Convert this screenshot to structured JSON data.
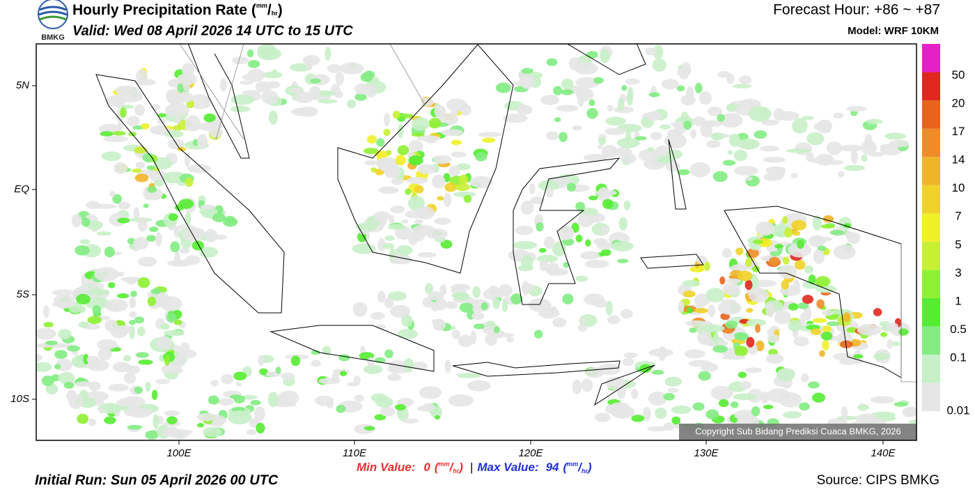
{
  "header": {
    "logo": "BMKG",
    "title": "Hourly Precipitation Rate",
    "valid": "Valid: Wed 08 April 2026 14 UTC to 15 UTC",
    "forecast_hour": "Forecast Hour: +86 ~ +87",
    "model": "Model: WRF 10KM"
  },
  "unit": {
    "open": "(",
    "num": "mm",
    "sep": "/",
    "den": "hr",
    "close": ")"
  },
  "map": {
    "lat_ticks": [
      "5N",
      "EQ",
      "5S",
      "10S"
    ],
    "lon_ticks": [
      "100E",
      "110E",
      "120E",
      "130E",
      "140E"
    ],
    "copyright": "Copyright Sub Bidang Prediksi Cuaca BMKG, 2026"
  },
  "legend": {
    "levels": [
      {
        "label": "0.01",
        "color": "#e6e6e6"
      },
      {
        "label": "0.1",
        "color": "#c8f0c8"
      },
      {
        "label": "0.5",
        "color": "#82ec82"
      },
      {
        "label": "1",
        "color": "#55ec32"
      },
      {
        "label": "3",
        "color": "#8ef032"
      },
      {
        "label": "5",
        "color": "#c8f032"
      },
      {
        "label": "7",
        "color": "#f0f028"
      },
      {
        "label": "10",
        "color": "#f0d228"
      },
      {
        "label": "14",
        "color": "#f0b428"
      },
      {
        "label": "17",
        "color": "#f08c28"
      },
      {
        "label": "20",
        "color": "#e8641e"
      },
      {
        "label": "50",
        "color": "#e0281e"
      },
      {
        "color": "#e620c8"
      }
    ]
  },
  "footer": {
    "min_label": "Min Value:",
    "min_value": "0",
    "separator": "|",
    "max_label": "Max Value:",
    "max_value": "94",
    "initial_run": "Initial Run: Sun 05 April 2026 00 UTC",
    "source": "Source: CIPS BMKG"
  }
}
